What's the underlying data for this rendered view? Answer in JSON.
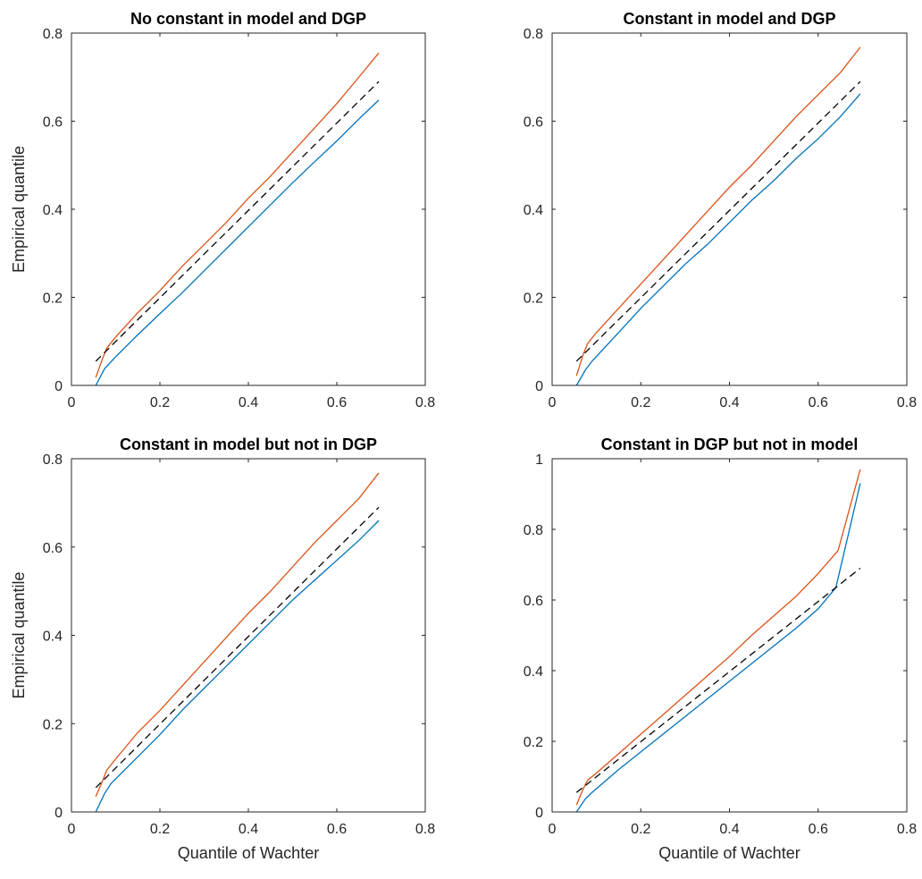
{
  "chart_data": [
    {
      "type": "line",
      "title": "No constant in model and DGP",
      "xlabel": "",
      "ylabel": "Empirical quantile",
      "xlim": [
        0,
        0.8
      ],
      "ylim": [
        0,
        0.8
      ],
      "xticks": [
        "0",
        "0.2",
        "0.4",
        "0.6",
        "0.8"
      ],
      "yticks": [
        "0",
        "0.2",
        "0.4",
        "0.6",
        "0.8"
      ],
      "grid": false,
      "series": [
        {
          "color": "#0072BD",
          "style": "solid",
          "x": [
            0.055,
            0.075,
            0.1,
            0.15,
            0.2,
            0.25,
            0.3,
            0.35,
            0.4,
            0.45,
            0.5,
            0.55,
            0.6,
            0.65,
            0.695
          ],
          "y": [
            0.0,
            0.038,
            0.065,
            0.115,
            0.163,
            0.21,
            0.26,
            0.31,
            0.36,
            0.41,
            0.46,
            0.508,
            0.555,
            0.605,
            0.648
          ]
        },
        {
          "color": "#D95319",
          "style": "solid",
          "x": [
            0.055,
            0.07,
            0.08,
            0.1,
            0.15,
            0.2,
            0.25,
            0.3,
            0.35,
            0.4,
            0.45,
            0.5,
            0.55,
            0.6,
            0.65,
            0.695
          ],
          "y": [
            0.018,
            0.06,
            0.085,
            0.11,
            0.165,
            0.215,
            0.27,
            0.32,
            0.37,
            0.425,
            0.475,
            0.53,
            0.585,
            0.64,
            0.7,
            0.755
          ]
        },
        {
          "color": "#000000",
          "style": "dashed",
          "x": [
            0.055,
            0.695
          ],
          "y": [
            0.055,
            0.69
          ]
        }
      ]
    },
    {
      "type": "line",
      "title": "Constant in model and DGP",
      "xlabel": "",
      "ylabel": "",
      "xlim": [
        0,
        0.8
      ],
      "ylim": [
        0,
        0.8
      ],
      "xticks": [
        "0",
        "0.2",
        "0.4",
        "0.6",
        "0.8"
      ],
      "yticks": [
        "0",
        "0.2",
        "0.4",
        "0.6",
        "0.8"
      ],
      "grid": false,
      "series": [
        {
          "color": "#0072BD",
          "style": "solid",
          "x": [
            0.055,
            0.075,
            0.09,
            0.15,
            0.2,
            0.25,
            0.3,
            0.35,
            0.4,
            0.45,
            0.5,
            0.55,
            0.6,
            0.65,
            0.695
          ],
          "y": [
            0.0,
            0.035,
            0.055,
            0.12,
            0.175,
            0.225,
            0.275,
            0.32,
            0.37,
            0.42,
            0.465,
            0.515,
            0.56,
            0.61,
            0.662
          ]
        },
        {
          "color": "#D95319",
          "style": "solid",
          "x": [
            0.055,
            0.07,
            0.08,
            0.1,
            0.15,
            0.2,
            0.25,
            0.3,
            0.35,
            0.4,
            0.45,
            0.5,
            0.55,
            0.6,
            0.65,
            0.695
          ],
          "y": [
            0.022,
            0.07,
            0.095,
            0.12,
            0.175,
            0.23,
            0.285,
            0.34,
            0.395,
            0.45,
            0.5,
            0.555,
            0.61,
            0.66,
            0.71,
            0.768
          ]
        },
        {
          "color": "#000000",
          "style": "dashed",
          "x": [
            0.055,
            0.695
          ],
          "y": [
            0.055,
            0.69
          ]
        }
      ]
    },
    {
      "type": "line",
      "title": "Constant in model but not in DGP",
      "xlabel": "Quantile of Wachter",
      "ylabel": "Empirical quantile",
      "xlim": [
        0,
        0.8
      ],
      "ylim": [
        0,
        0.8
      ],
      "xticks": [
        "0",
        "0.2",
        "0.4",
        "0.6",
        "0.8"
      ],
      "yticks": [
        "0",
        "0.2",
        "0.4",
        "0.6",
        "0.8"
      ],
      "grid": false,
      "series": [
        {
          "color": "#0072BD",
          "style": "solid",
          "x": [
            0.055,
            0.075,
            0.09,
            0.15,
            0.2,
            0.25,
            0.3,
            0.35,
            0.4,
            0.45,
            0.5,
            0.55,
            0.6,
            0.65,
            0.695
          ],
          "y": [
            0.0,
            0.042,
            0.065,
            0.125,
            0.175,
            0.23,
            0.28,
            0.33,
            0.38,
            0.43,
            0.48,
            0.525,
            0.57,
            0.615,
            0.66
          ]
        },
        {
          "color": "#D95319",
          "style": "solid",
          "x": [
            0.055,
            0.07,
            0.08,
            0.1,
            0.15,
            0.2,
            0.25,
            0.3,
            0.35,
            0.4,
            0.45,
            0.5,
            0.55,
            0.6,
            0.65,
            0.695
          ],
          "y": [
            0.035,
            0.07,
            0.095,
            0.12,
            0.18,
            0.23,
            0.285,
            0.34,
            0.395,
            0.45,
            0.5,
            0.555,
            0.61,
            0.66,
            0.71,
            0.768
          ]
        },
        {
          "color": "#000000",
          "style": "dashed",
          "x": [
            0.055,
            0.695
          ],
          "y": [
            0.055,
            0.69
          ]
        }
      ]
    },
    {
      "type": "line",
      "title": "Constant in DGP but not in model",
      "xlabel": "Quantile of Wachter",
      "ylabel": "",
      "xlim": [
        0,
        0.8
      ],
      "ylim": [
        0,
        1
      ],
      "xticks": [
        "0",
        "0.2",
        "0.4",
        "0.6",
        "0.8"
      ],
      "yticks": [
        "0",
        "0.2",
        "0.4",
        "0.6",
        "0.8",
        "1"
      ],
      "grid": false,
      "series": [
        {
          "color": "#0072BD",
          "style": "solid",
          "x": [
            0.055,
            0.075,
            0.09,
            0.15,
            0.2,
            0.25,
            0.3,
            0.35,
            0.4,
            0.45,
            0.5,
            0.55,
            0.6,
            0.64,
            0.695
          ],
          "y": [
            0.0,
            0.037,
            0.055,
            0.12,
            0.17,
            0.22,
            0.27,
            0.32,
            0.37,
            0.42,
            0.47,
            0.52,
            0.575,
            0.635,
            0.93
          ]
        },
        {
          "color": "#D95319",
          "style": "solid",
          "x": [
            0.055,
            0.07,
            0.08,
            0.1,
            0.15,
            0.2,
            0.25,
            0.3,
            0.35,
            0.4,
            0.45,
            0.5,
            0.55,
            0.6,
            0.645,
            0.695
          ],
          "y": [
            0.02,
            0.065,
            0.09,
            0.11,
            0.165,
            0.22,
            0.275,
            0.33,
            0.385,
            0.44,
            0.5,
            0.555,
            0.61,
            0.675,
            0.74,
            0.97
          ]
        },
        {
          "color": "#000000",
          "style": "dashed",
          "x": [
            0.055,
            0.695
          ],
          "y": [
            0.055,
            0.69
          ]
        }
      ]
    }
  ]
}
